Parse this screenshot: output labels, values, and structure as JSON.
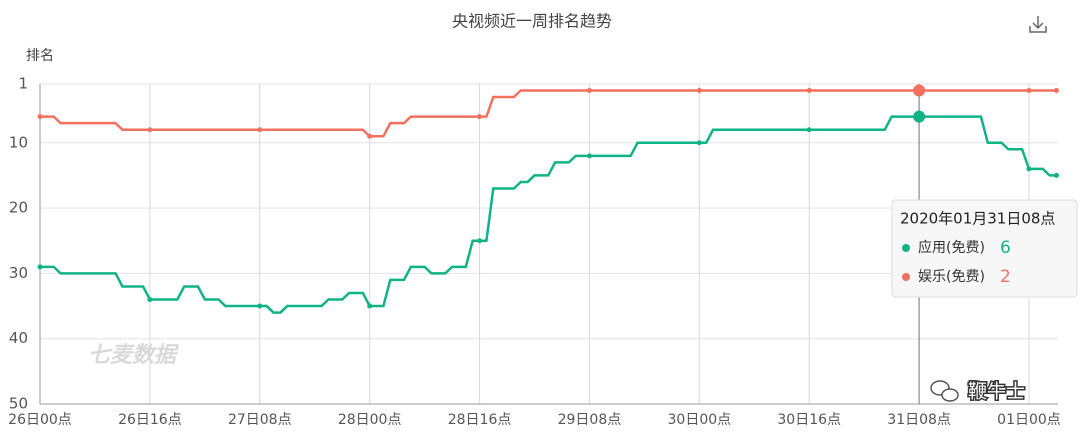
{
  "chart_data": {
    "type": "line",
    "title": "央视频近一周排名趋势",
    "y_label": "排名",
    "categories": [
      "26日00点",
      null,
      null,
      null,
      null,
      null,
      null,
      null,
      null,
      null,
      null,
      null,
      null,
      null,
      null,
      null,
      "26日16点",
      null,
      null,
      null,
      null,
      null,
      null,
      null,
      null,
      null,
      null,
      null,
      null,
      null,
      null,
      null,
      "27日08点",
      null,
      null,
      null,
      null,
      null,
      null,
      null,
      null,
      null,
      null,
      null,
      null,
      null,
      null,
      null,
      "28日00点",
      null,
      null,
      null,
      null,
      null,
      null,
      null,
      null,
      null,
      null,
      null,
      null,
      null,
      null,
      null,
      "28日16点",
      null,
      null,
      null,
      null,
      null,
      null,
      null,
      null,
      null,
      null,
      null,
      null,
      null,
      null,
      null,
      "29日08点",
      null,
      null,
      null,
      null,
      null,
      null,
      null,
      null,
      null,
      null,
      null,
      null,
      null,
      null,
      null,
      "30日00点",
      null,
      null,
      null,
      null,
      null,
      null,
      null,
      null,
      null,
      null,
      null,
      null,
      null,
      null,
      null,
      "30日16点",
      null,
      null,
      null,
      null,
      null,
      null,
      null,
      null,
      null,
      null,
      null,
      null,
      null,
      null,
      null,
      "31日08点",
      null,
      null,
      null,
      null,
      null,
      null,
      null,
      null,
      null,
      null,
      null,
      null,
      null,
      null,
      null,
      "01日00点",
      null,
      null,
      null,
      null
    ],
    "series": [
      {
        "name": "应用(免费)",
        "color": "#10b386",
        "values": [
          29,
          29,
          29,
          30,
          30,
          30,
          30,
          30,
          30,
          30,
          30,
          30,
          32,
          32,
          32,
          32,
          34,
          34,
          34,
          34,
          34,
          32,
          32,
          32,
          34,
          34,
          34,
          35,
          35,
          35,
          35,
          35,
          35,
          35,
          36,
          36,
          35,
          35,
          35,
          35,
          35,
          35,
          34,
          34,
          34,
          33,
          33,
          33,
          35,
          35,
          35,
          31,
          31,
          31,
          29,
          29,
          29,
          30,
          30,
          30,
          29,
          29,
          29,
          25,
          25,
          25,
          17,
          17,
          17,
          17,
          16,
          16,
          15,
          15,
          15,
          13,
          13,
          13,
          12,
          12,
          12,
          12,
          12,
          12,
          12,
          12,
          12,
          10,
          10,
          10,
          10,
          10,
          10,
          10,
          10,
          10,
          10,
          10,
          8,
          8,
          8,
          8,
          8,
          8,
          8,
          8,
          8,
          8,
          8,
          8,
          8,
          8,
          8,
          8,
          8,
          8,
          8,
          8,
          8,
          8,
          8,
          8,
          8,
          8,
          6,
          6,
          6,
          6,
          6,
          6,
          6,
          6,
          6,
          6,
          6,
          6,
          6,
          6,
          10,
          10,
          10,
          11,
          11,
          11,
          14,
          14,
          14,
          15,
          15
        ]
      },
      {
        "name": "娱乐(免费)",
        "color": "#f2705e",
        "values": [
          6,
          6,
          6,
          7,
          7,
          7,
          7,
          7,
          7,
          7,
          7,
          7,
          8,
          8,
          8,
          8,
          8,
          8,
          8,
          8,
          8,
          8,
          8,
          8,
          8,
          8,
          8,
          8,
          8,
          8,
          8,
          8,
          8,
          8,
          8,
          8,
          8,
          8,
          8,
          8,
          8,
          8,
          8,
          8,
          8,
          8,
          8,
          8,
          9,
          9,
          9,
          7,
          7,
          7,
          6,
          6,
          6,
          6,
          6,
          6,
          6,
          6,
          6,
          6,
          6,
          6,
          3,
          3,
          3,
          3,
          2,
          2,
          2,
          2,
          2,
          2,
          2,
          2,
          2,
          2,
          2,
          2,
          2,
          2,
          2,
          2,
          2,
          2,
          2,
          2,
          2,
          2,
          2,
          2,
          2,
          2,
          2,
          2,
          2,
          2,
          2,
          2,
          2,
          2,
          2,
          2,
          2,
          2,
          2,
          2,
          2,
          2,
          2,
          2,
          2,
          2,
          2,
          2,
          2,
          2,
          2,
          2,
          2,
          2,
          2,
          2,
          2,
          2,
          2,
          2,
          2,
          2,
          2,
          2,
          2,
          2,
          2,
          2,
          2,
          2,
          2,
          2,
          2,
          2,
          2,
          2,
          2,
          2,
          2
        ]
      }
    ],
    "ylim": [
      1,
      50
    ],
    "y_inverted": true,
    "yticks": [
      1,
      10,
      20,
      30,
      40,
      50
    ],
    "grid": true,
    "tooltip_title": "2020年01月31日08点",
    "watermark": "七麦数据",
    "source": "鞭牛士"
  }
}
